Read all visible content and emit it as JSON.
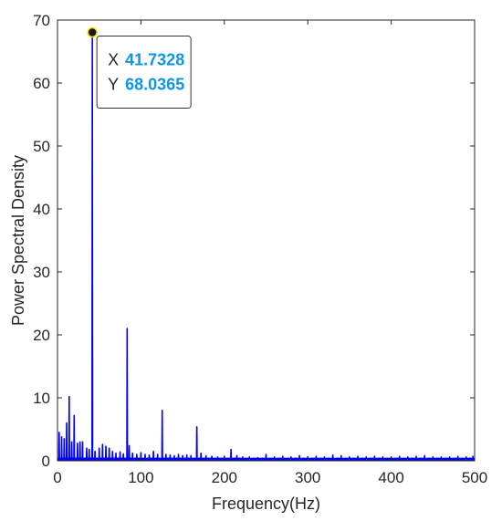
{
  "chart_data": {
    "type": "line",
    "title": "",
    "xlabel": "Frequency(Hz)",
    "ylabel": "Power Spectral Density",
    "xlim": [
      0,
      500
    ],
    "ylim": [
      0,
      70
    ],
    "xticks": [
      0,
      100,
      200,
      300,
      400,
      500
    ],
    "yticks": [
      0,
      10,
      20,
      30,
      40,
      50,
      60,
      70
    ],
    "grid": false,
    "box": true,
    "series": [
      {
        "color": "#0000ff",
        "peaks": [
          {
            "x": 2,
            "y": 4.5
          },
          {
            "x": 5,
            "y": 3.8
          },
          {
            "x": 8,
            "y": 3.5
          },
          {
            "x": 11,
            "y": 6.0
          },
          {
            "x": 14,
            "y": 10.2
          },
          {
            "x": 17,
            "y": 3.0
          },
          {
            "x": 20,
            "y": 7.2
          },
          {
            "x": 24,
            "y": 2.8
          },
          {
            "x": 27,
            "y": 3.0
          },
          {
            "x": 30,
            "y": 3.0
          },
          {
            "x": 35,
            "y": 2.0
          },
          {
            "x": 38,
            "y": 1.8
          },
          {
            "x": 41.7328,
            "y": 68.0365
          },
          {
            "x": 45,
            "y": 1.5
          },
          {
            "x": 50,
            "y": 2.0
          },
          {
            "x": 54,
            "y": 2.6
          },
          {
            "x": 58,
            "y": 2.3
          },
          {
            "x": 62,
            "y": 2.0
          },
          {
            "x": 66,
            "y": 1.5
          },
          {
            "x": 70,
            "y": 1.2
          },
          {
            "x": 75,
            "y": 1.4
          },
          {
            "x": 79,
            "y": 1.1
          },
          {
            "x": 83.5,
            "y": 21.0
          },
          {
            "x": 86,
            "y": 2.4
          },
          {
            "x": 90,
            "y": 1.2
          },
          {
            "x": 95,
            "y": 1.0
          },
          {
            "x": 100,
            "y": 1.3
          },
          {
            "x": 105,
            "y": 1.0
          },
          {
            "x": 110,
            "y": 0.9
          },
          {
            "x": 115,
            "y": 1.5
          },
          {
            "x": 120,
            "y": 1.0
          },
          {
            "x": 125.5,
            "y": 8.0
          },
          {
            "x": 130,
            "y": 1.0
          },
          {
            "x": 135,
            "y": 0.9
          },
          {
            "x": 140,
            "y": 0.8
          },
          {
            "x": 145,
            "y": 1.0
          },
          {
            "x": 150,
            "y": 0.8
          },
          {
            "x": 155,
            "y": 0.9
          },
          {
            "x": 160,
            "y": 0.8
          },
          {
            "x": 167,
            "y": 5.4
          },
          {
            "x": 172,
            "y": 1.2
          },
          {
            "x": 178,
            "y": 0.8
          },
          {
            "x": 185,
            "y": 0.7
          },
          {
            "x": 192,
            "y": 0.6
          },
          {
            "x": 200,
            "y": 0.7
          },
          {
            "x": 208,
            "y": 1.8
          },
          {
            "x": 215,
            "y": 0.8
          },
          {
            "x": 222,
            "y": 0.6
          },
          {
            "x": 230,
            "y": 0.6
          },
          {
            "x": 240,
            "y": 0.5
          },
          {
            "x": 250,
            "y": 1.0
          },
          {
            "x": 260,
            "y": 0.6
          },
          {
            "x": 270,
            "y": 0.7
          },
          {
            "x": 280,
            "y": 0.6
          },
          {
            "x": 290,
            "y": 0.8
          },
          {
            "x": 300,
            "y": 0.6
          },
          {
            "x": 310,
            "y": 0.7
          },
          {
            "x": 320,
            "y": 0.6
          },
          {
            "x": 330,
            "y": 0.9
          },
          {
            "x": 340,
            "y": 0.8
          },
          {
            "x": 350,
            "y": 0.6
          },
          {
            "x": 360,
            "y": 0.7
          },
          {
            "x": 370,
            "y": 0.6
          },
          {
            "x": 380,
            "y": 0.7
          },
          {
            "x": 390,
            "y": 0.6
          },
          {
            "x": 400,
            "y": 0.6
          },
          {
            "x": 410,
            "y": 0.7
          },
          {
            "x": 420,
            "y": 0.6
          },
          {
            "x": 430,
            "y": 0.7
          },
          {
            "x": 440,
            "y": 0.8
          },
          {
            "x": 450,
            "y": 0.6
          },
          {
            "x": 460,
            "y": 0.6
          },
          {
            "x": 470,
            "y": 0.6
          },
          {
            "x": 480,
            "y": 0.7
          },
          {
            "x": 490,
            "y": 0.6
          },
          {
            "x": 498,
            "y": 0.7
          }
        ]
      }
    ],
    "datatip": {
      "x": 41.7328,
      "y": 68.0365,
      "x_key": "X",
      "y_key": "Y",
      "x_text": "41.7328",
      "y_text": "68.0365",
      "value_color": "#0d95e8"
    }
  },
  "colors": {
    "axis": "#262626",
    "line": "#0000ff",
    "tip_border": "#333333",
    "tip_background": "#ffffff",
    "marker_fill": "#1a1a1a",
    "marker_ring": "#f2e600"
  }
}
